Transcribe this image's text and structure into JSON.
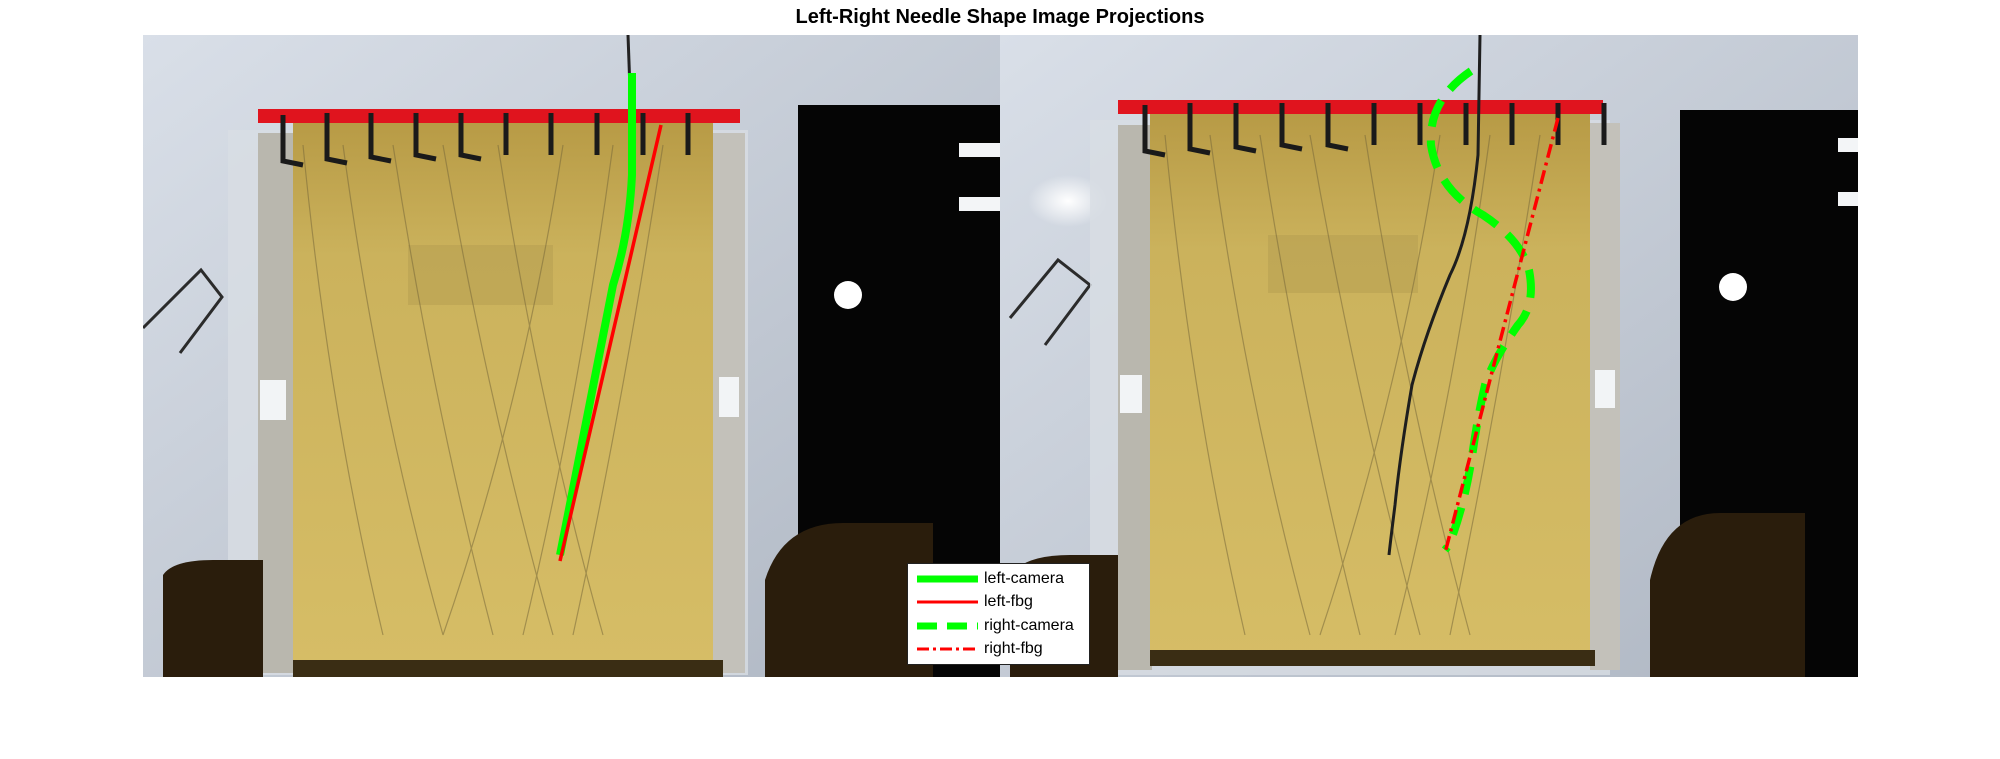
{
  "figure": {
    "title": "Left-Right Needle Shape Image Projections"
  },
  "legend": {
    "items": [
      {
        "label": "left-camera",
        "color": "#00ff00",
        "style": "solid",
        "weight": "thick"
      },
      {
        "label": "left-fbg",
        "color": "#ff0000",
        "style": "solid",
        "weight": "thin"
      },
      {
        "label": "right-camera",
        "color": "#00ff00",
        "style": "dashed",
        "weight": "thick"
      },
      {
        "label": "right-fbg",
        "color": "#ff0000",
        "style": "dash-dot",
        "weight": "thin"
      }
    ]
  },
  "colors": {
    "camera": "#00ff00",
    "fbg": "#ff0000",
    "gel": "#cdb45a",
    "backdrop": "#c4cbd6",
    "dark_panel": "#050505"
  }
}
